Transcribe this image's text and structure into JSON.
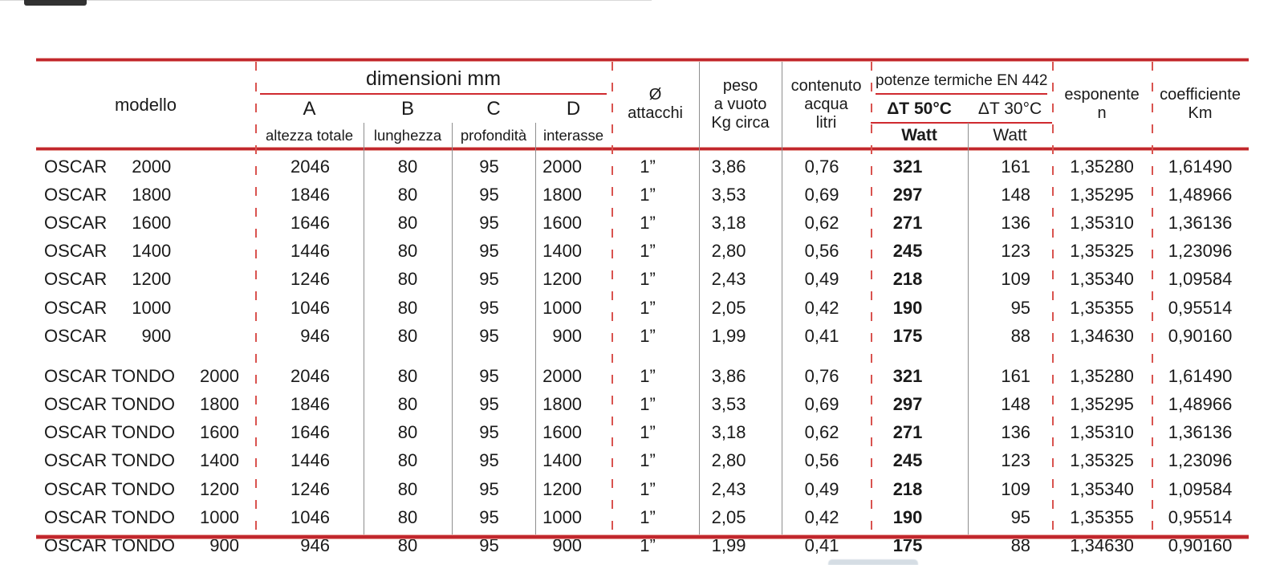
{
  "colors": {
    "accent_red": "#c1272d",
    "dashed_red": "#d9534f",
    "grid_grey": "#8e8e8e"
  },
  "table": {
    "header": {
      "modello": "modello",
      "dimensioni_title": "dimensioni mm",
      "dim_letters": [
        "A",
        "B",
        "C",
        "D"
      ],
      "dim_sublabels": [
        "altezza totale",
        "lunghezza",
        "profondità",
        "interasse"
      ],
      "attacchi_lines": [
        "Ø",
        "attacchi"
      ],
      "peso_lines": [
        "peso",
        "a vuoto",
        "Kg circa"
      ],
      "contenuto_lines": [
        "contenuto",
        "acqua",
        "litri"
      ],
      "potenze_title": "potenze termiche EN 442",
      "dt50": "ΔT 50°C",
      "dt30": "ΔT 30°C",
      "watt50": "Watt",
      "watt30": "Watt",
      "esponente_lines": [
        "esponente",
        "n"
      ],
      "coefficiente_lines": [
        "coefficiente",
        "Km"
      ]
    },
    "groups": [
      {
        "rows": [
          {
            "model": "OSCAR",
            "size": "2000",
            "A": "2046",
            "B": "80",
            "C": "95",
            "D": "2000",
            "att": "1”",
            "peso": "3,86",
            "acqua": "0,76",
            "w50": "321",
            "w30": "161",
            "n": "1,35280",
            "km": "1,61490"
          },
          {
            "model": "OSCAR",
            "size": "1800",
            "A": "1846",
            "B": "80",
            "C": "95",
            "D": "1800",
            "att": "1”",
            "peso": "3,53",
            "acqua": "0,69",
            "w50": "297",
            "w30": "148",
            "n": "1,35295",
            "km": "1,48966"
          },
          {
            "model": "OSCAR",
            "size": "1600",
            "A": "1646",
            "B": "80",
            "C": "95",
            "D": "1600",
            "att": "1”",
            "peso": "3,18",
            "acqua": "0,62",
            "w50": "271",
            "w30": "136",
            "n": "1,35310",
            "km": "1,36136"
          },
          {
            "model": "OSCAR",
            "size": "1400",
            "A": "1446",
            "B": "80",
            "C": "95",
            "D": "1400",
            "att": "1”",
            "peso": "2,80",
            "acqua": "0,56",
            "w50": "245",
            "w30": "123",
            "n": "1,35325",
            "km": "1,23096"
          },
          {
            "model": "OSCAR",
            "size": "1200",
            "A": "1246",
            "B": "80",
            "C": "95",
            "D": "1200",
            "att": "1”",
            "peso": "2,43",
            "acqua": "0,49",
            "w50": "218",
            "w30": "109",
            "n": "1,35340",
            "km": "1,09584"
          },
          {
            "model": "OSCAR",
            "size": "1000",
            "A": "1046",
            "B": "80",
            "C": "95",
            "D": "1000",
            "att": "1”",
            "peso": "2,05",
            "acqua": "0,42",
            "w50": "190",
            "w30": "95",
            "n": "1,35355",
            "km": "0,95514"
          },
          {
            "model": "OSCAR",
            "size": "900",
            "A": "946",
            "B": "80",
            "C": "95",
            "D": "900",
            "att": "1”",
            "peso": "1,99",
            "acqua": "0,41",
            "w50": "175",
            "w30": "88",
            "n": "1,34630",
            "km": "0,90160"
          }
        ]
      },
      {
        "rows": [
          {
            "model": "OSCAR TONDO",
            "size": "2000",
            "A": "2046",
            "B": "80",
            "C": "95",
            "D": "2000",
            "att": "1”",
            "peso": "3,86",
            "acqua": "0,76",
            "w50": "321",
            "w30": "161",
            "n": "1,35280",
            "km": "1,61490"
          },
          {
            "model": "OSCAR TONDO",
            "size": "1800",
            "A": "1846",
            "B": "80",
            "C": "95",
            "D": "1800",
            "att": "1”",
            "peso": "3,53",
            "acqua": "0,69",
            "w50": "297",
            "w30": "148",
            "n": "1,35295",
            "km": "1,48966"
          },
          {
            "model": "OSCAR TONDO",
            "size": "1600",
            "A": "1646",
            "B": "80",
            "C": "95",
            "D": "1600",
            "att": "1”",
            "peso": "3,18",
            "acqua": "0,62",
            "w50": "271",
            "w30": "136",
            "n": "1,35310",
            "km": "1,36136"
          },
          {
            "model": "OSCAR TONDO",
            "size": "1400",
            "A": "1446",
            "B": "80",
            "C": "95",
            "D": "1400",
            "att": "1”",
            "peso": "2,80",
            "acqua": "0,56",
            "w50": "245",
            "w30": "123",
            "n": "1,35325",
            "km": "1,23096"
          },
          {
            "model": "OSCAR TONDO",
            "size": "1200",
            "A": "1246",
            "B": "80",
            "C": "95",
            "D": "1200",
            "att": "1”",
            "peso": "2,43",
            "acqua": "0,49",
            "w50": "218",
            "w30": "109",
            "n": "1,35340",
            "km": "1,09584"
          },
          {
            "model": "OSCAR TONDO",
            "size": "1000",
            "A": "1046",
            "B": "80",
            "C": "95",
            "D": "1000",
            "att": "1”",
            "peso": "2,05",
            "acqua": "0,42",
            "w50": "190",
            "w30": "95",
            "n": "1,35355",
            "km": "0,95514"
          },
          {
            "model": "OSCAR TONDO",
            "size": "900",
            "A": "946",
            "B": "80",
            "C": "95",
            "D": "900",
            "att": "1”",
            "peso": "1,99",
            "acqua": "0,41",
            "w50": "175",
            "w30": "88",
            "n": "1,34630",
            "km": "0,90160"
          }
        ]
      }
    ]
  }
}
